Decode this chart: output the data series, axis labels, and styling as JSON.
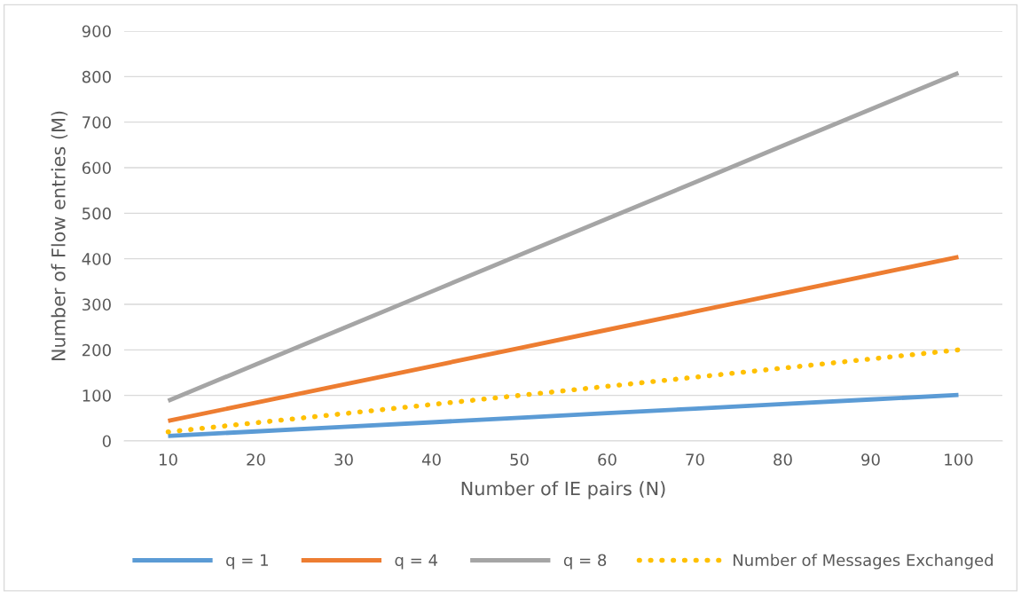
{
  "chart_data": {
    "type": "line",
    "xlabel": "Number of IE pairs (N)",
    "ylabel": "Number of Flow entries (M)",
    "categories": [
      "10",
      "20",
      "30",
      "40",
      "50",
      "60",
      "70",
      "80",
      "90",
      "100"
    ],
    "series": [
      {
        "name": "q = 1",
        "color": "#5b9bd5",
        "values": [
          11,
          21,
          31,
          41,
          51,
          61,
          71,
          81,
          91,
          101
        ]
      },
      {
        "name": "q = 4",
        "color": "#ed7d31",
        "values": [
          44,
          84,
          124,
          164,
          204,
          244,
          284,
          324,
          364,
          404
        ]
      },
      {
        "name": "q = 8",
        "color": "#a5a5a5",
        "values": [
          88,
          168,
          248,
          328,
          408,
          488,
          568,
          648,
          728,
          808
        ]
      },
      {
        "name": "Number of Messages Exchanged",
        "color": "#ffc000",
        "line_style": "dotted",
        "values": [
          20,
          40,
          60,
          80,
          100,
          120,
          140,
          160,
          180,
          200
        ]
      }
    ],
    "ylim": [
      0,
      900
    ],
    "yticks": [
      0,
      100,
      200,
      300,
      400,
      500,
      600,
      700,
      800,
      900
    ],
    "grid": "y",
    "legend": "bottom",
    "marker": "none",
    "line_style": "solid"
  }
}
